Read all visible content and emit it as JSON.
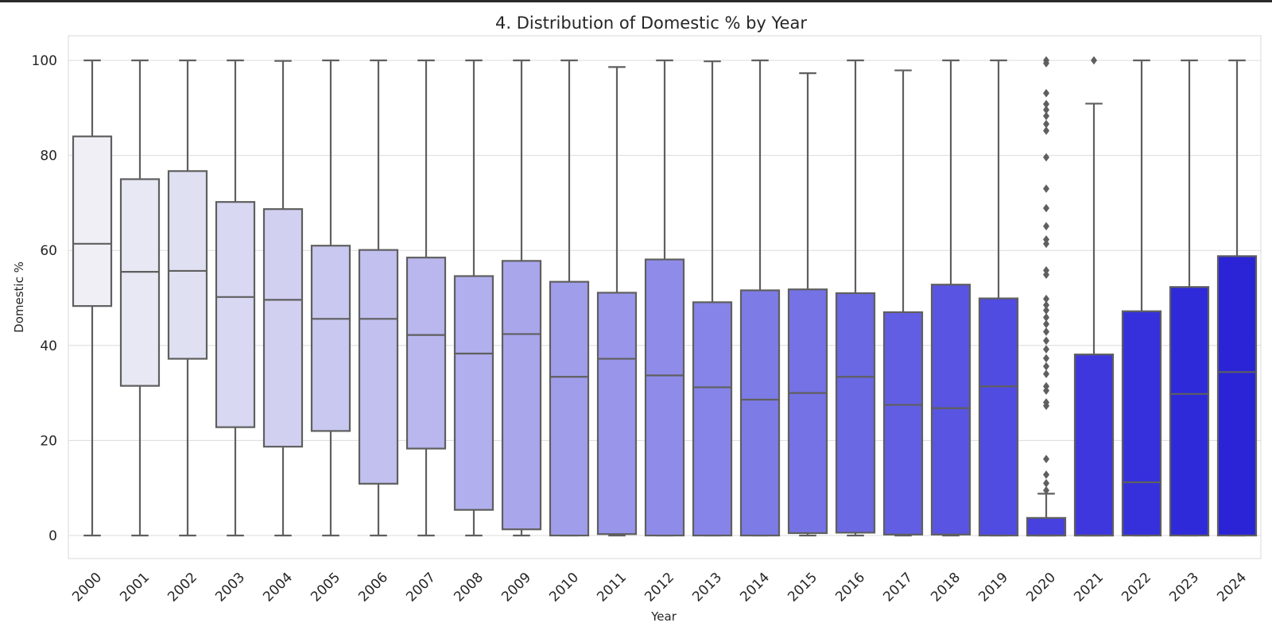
{
  "chart_data": {
    "type": "box",
    "title": "4. Distribution of Domestic % by Year",
    "xlabel": "Year",
    "ylabel": "Domestic %",
    "ylim": [
      -5,
      105
    ],
    "yticks": [
      0,
      20,
      40,
      60,
      80,
      100
    ],
    "grid": true,
    "categories": [
      "2000",
      "2001",
      "2002",
      "2003",
      "2004",
      "2005",
      "2006",
      "2007",
      "2008",
      "2009",
      "2010",
      "2011",
      "2012",
      "2013",
      "2014",
      "2015",
      "2016",
      "2017",
      "2018",
      "2019",
      "2020",
      "2021",
      "2022",
      "2023",
      "2024"
    ],
    "boxes": [
      {
        "min": 0,
        "q1": 48.3,
        "median": 61.4,
        "q3": 84.0,
        "max": 100,
        "outliers": []
      },
      {
        "min": 0,
        "q1": 31.5,
        "median": 55.5,
        "q3": 75.0,
        "max": 100,
        "outliers": []
      },
      {
        "min": 0,
        "q1": 37.2,
        "median": 55.7,
        "q3": 76.7,
        "max": 100,
        "outliers": []
      },
      {
        "min": 0,
        "q1": 22.8,
        "median": 50.2,
        "q3": 70.2,
        "max": 100,
        "outliers": []
      },
      {
        "min": 0,
        "q1": 18.7,
        "median": 49.6,
        "q3": 68.7,
        "max": 99.9,
        "outliers": []
      },
      {
        "min": 0,
        "q1": 22.0,
        "median": 45.6,
        "q3": 61.0,
        "max": 100,
        "outliers": []
      },
      {
        "min": 0,
        "q1": 10.9,
        "median": 45.6,
        "q3": 60.1,
        "max": 100,
        "outliers": []
      },
      {
        "min": 0,
        "q1": 18.3,
        "median": 42.2,
        "q3": 58.5,
        "max": 100,
        "outliers": []
      },
      {
        "min": 0,
        "q1": 5.4,
        "median": 38.3,
        "q3": 54.6,
        "max": 100,
        "outliers": []
      },
      {
        "min": 0,
        "q1": 1.3,
        "median": 42.4,
        "q3": 57.8,
        "max": 100,
        "outliers": []
      },
      {
        "min": 0,
        "q1": 0,
        "median": 33.4,
        "q3": 53.4,
        "max": 100,
        "outliers": []
      },
      {
        "min": 0,
        "q1": 0.3,
        "median": 37.2,
        "q3": 51.1,
        "max": 98.6,
        "outliers": []
      },
      {
        "min": 0,
        "q1": 0,
        "median": 33.7,
        "q3": 58.1,
        "max": 100,
        "outliers": []
      },
      {
        "min": 0,
        "q1": 0,
        "median": 31.2,
        "q3": 49.1,
        "max": 99.8,
        "outliers": []
      },
      {
        "min": 0,
        "q1": 0,
        "median": 28.6,
        "q3": 51.6,
        "max": 100,
        "outliers": []
      },
      {
        "min": 0,
        "q1": 0.5,
        "median": 30.0,
        "q3": 51.8,
        "max": 97.3,
        "outliers": []
      },
      {
        "min": 0,
        "q1": 0.6,
        "median": 33.4,
        "q3": 51.0,
        "max": 100,
        "outliers": []
      },
      {
        "min": 0,
        "q1": 0.2,
        "median": 27.5,
        "q3": 47.0,
        "max": 97.9,
        "outliers": []
      },
      {
        "min": 0,
        "q1": 0.2,
        "median": 26.8,
        "q3": 52.8,
        "max": 100,
        "outliers": []
      },
      {
        "min": 0,
        "q1": 0,
        "median": 31.4,
        "q3": 49.9,
        "max": 100,
        "outliers": []
      },
      {
        "min": 0,
        "q1": 0,
        "median": 0,
        "q3": 3.7,
        "max": 8.8,
        "outliers": [
          9.5,
          11.0,
          12.8,
          16.1,
          27.3,
          28.0,
          30.5,
          31.4,
          34.0,
          35.6,
          37.3,
          39.2,
          41.0,
          42.9,
          44.5,
          45.9,
          47.4,
          48.5,
          49.8,
          54.9,
          55.8,
          61.4,
          62.3,
          65.1,
          68.9,
          73.0,
          79.6,
          85.2,
          86.6,
          88.3,
          89.6,
          90.8,
          93.1,
          99.4,
          100
        ]
      },
      {
        "min": 0,
        "q1": 0,
        "median": 0,
        "q3": 38.1,
        "max": 90.9,
        "outliers": [
          100
        ]
      },
      {
        "min": 0,
        "q1": 0,
        "median": 11.2,
        "q3": 47.2,
        "max": 100,
        "outliers": []
      },
      {
        "min": 0,
        "q1": 0,
        "median": 29.8,
        "q3": 52.3,
        "max": 100,
        "outliers": []
      },
      {
        "min": 0,
        "q1": 0,
        "median": 34.4,
        "q3": 58.8,
        "max": 100,
        "outliers": []
      }
    ],
    "colors": [
      "#efeff5",
      "#e8e8f4",
      "#e0e0f3",
      "#d9d8f2",
      "#d1d0f1",
      "#c9c8f0",
      "#c1c0ef",
      "#b9b7ee",
      "#b1afed",
      "#a9a6ec",
      "#a09eeb",
      "#9895ea",
      "#8f8ce9",
      "#8684e8",
      "#7d7be6",
      "#7472e5",
      "#6b68e4",
      "#625ee3",
      "#5955e2",
      "#504be1",
      "#4741df",
      "#3e37de",
      "#3530dc",
      "#2f2ad9",
      "#2a24d6"
    ],
    "line_color": "#5f5f5f"
  }
}
